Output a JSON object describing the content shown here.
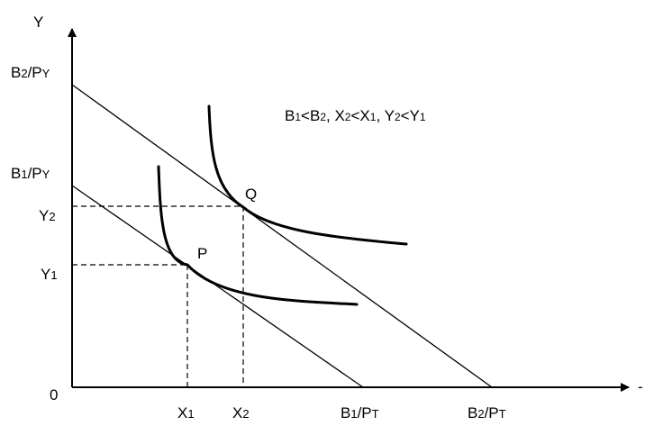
{
  "axes": {
    "y_label": "Y",
    "x_label": "-",
    "origin": "0"
  },
  "y_ticks": {
    "b2_py": {
      "main": "B",
      "sub1": "2",
      "mid": "/P",
      "sub2": "Y"
    },
    "b1_py": {
      "main": "B",
      "sub1": "1",
      "mid": "/P",
      "sub2": "Y"
    },
    "y2": {
      "main": "Y",
      "sub": "2"
    },
    "y1": {
      "main": "Y",
      "sub": "1"
    }
  },
  "x_ticks": {
    "x1": {
      "main": "X",
      "sub": "1"
    },
    "x2": {
      "main": "X",
      "sub": "2"
    },
    "b1_pt": {
      "main": "B",
      "sub1": "1",
      "mid": "/P",
      "sub2": "T"
    },
    "b2_pt": {
      "main": "B",
      "sub1": "2",
      "mid": "/P",
      "sub2": "T"
    }
  },
  "points": {
    "p": "P",
    "q": "Q"
  },
  "condition": {
    "b_a": "B",
    "b_a_sub": "1",
    "lt1": "<B",
    "b_b_sub": "2",
    "sep1": ", X",
    "x_a_sub": "2",
    "lt2": "<X",
    "x_b_sub": "1",
    "sep2": ", Y",
    "y_a_sub": "2",
    "lt3": "<Y",
    "y_b_sub": "1"
  }
}
